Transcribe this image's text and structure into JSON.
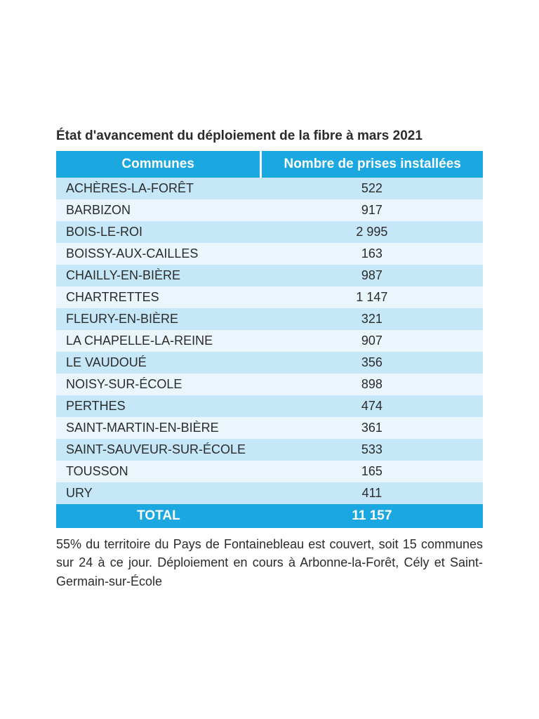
{
  "title": "État d'avancement du déploiement de la fibre à mars 2021",
  "table": {
    "columns": [
      "Communes",
      "Nombre de prises installées"
    ],
    "col_align": [
      "left",
      "center"
    ],
    "col_widths": [
      "48%",
      "52%"
    ],
    "header_bg": "#1ba7e0",
    "header_fg": "#ffffff",
    "row_bg_odd": "#c6e7f7",
    "row_bg_even": "#eaf6fc",
    "text_color": "#2b2b2b",
    "header_fontsize": 19,
    "body_fontsize": 18,
    "rows": [
      {
        "commune": "ACHÈRES-LA-FORÊT",
        "value": "522"
      },
      {
        "commune": "BARBIZON",
        "value": "917"
      },
      {
        "commune": "BOIS-LE-ROI",
        "value": "2 995"
      },
      {
        "commune": "BOISSY-AUX-CAILLES",
        "value": "163"
      },
      {
        "commune": "CHAILLY-EN-BIÈRE",
        "value": "987"
      },
      {
        "commune": "CHARTRETTES",
        "value": "1 147"
      },
      {
        "commune": "FLEURY-EN-BIÈRE",
        "value": "321"
      },
      {
        "commune": "LA CHAPELLE-LA-REINE",
        "value": "907"
      },
      {
        "commune": "LE VAUDOUÉ",
        "value": "356"
      },
      {
        "commune": "NOISY-SUR-ÉCOLE",
        "value": "898"
      },
      {
        "commune": "PERTHES",
        "value": "474"
      },
      {
        "commune": "SAINT-MARTIN-EN-BIÈRE",
        "value": "361"
      },
      {
        "commune": "SAINT-SAUVEUR-SUR-ÉCOLE",
        "value": "533"
      },
      {
        "commune": "TOUSSON",
        "value": "165"
      },
      {
        "commune": "URY",
        "value": "411"
      }
    ],
    "total": {
      "label": "TOTAL",
      "value": "11 157"
    }
  },
  "footnote": "55% du territoire du Pays de Fontainebleau est couvert, soit 15 communes sur 24 à ce jour. Déploiement en cours à Arbonne-la-Forêt, Cély et Saint-Germain-sur-École"
}
